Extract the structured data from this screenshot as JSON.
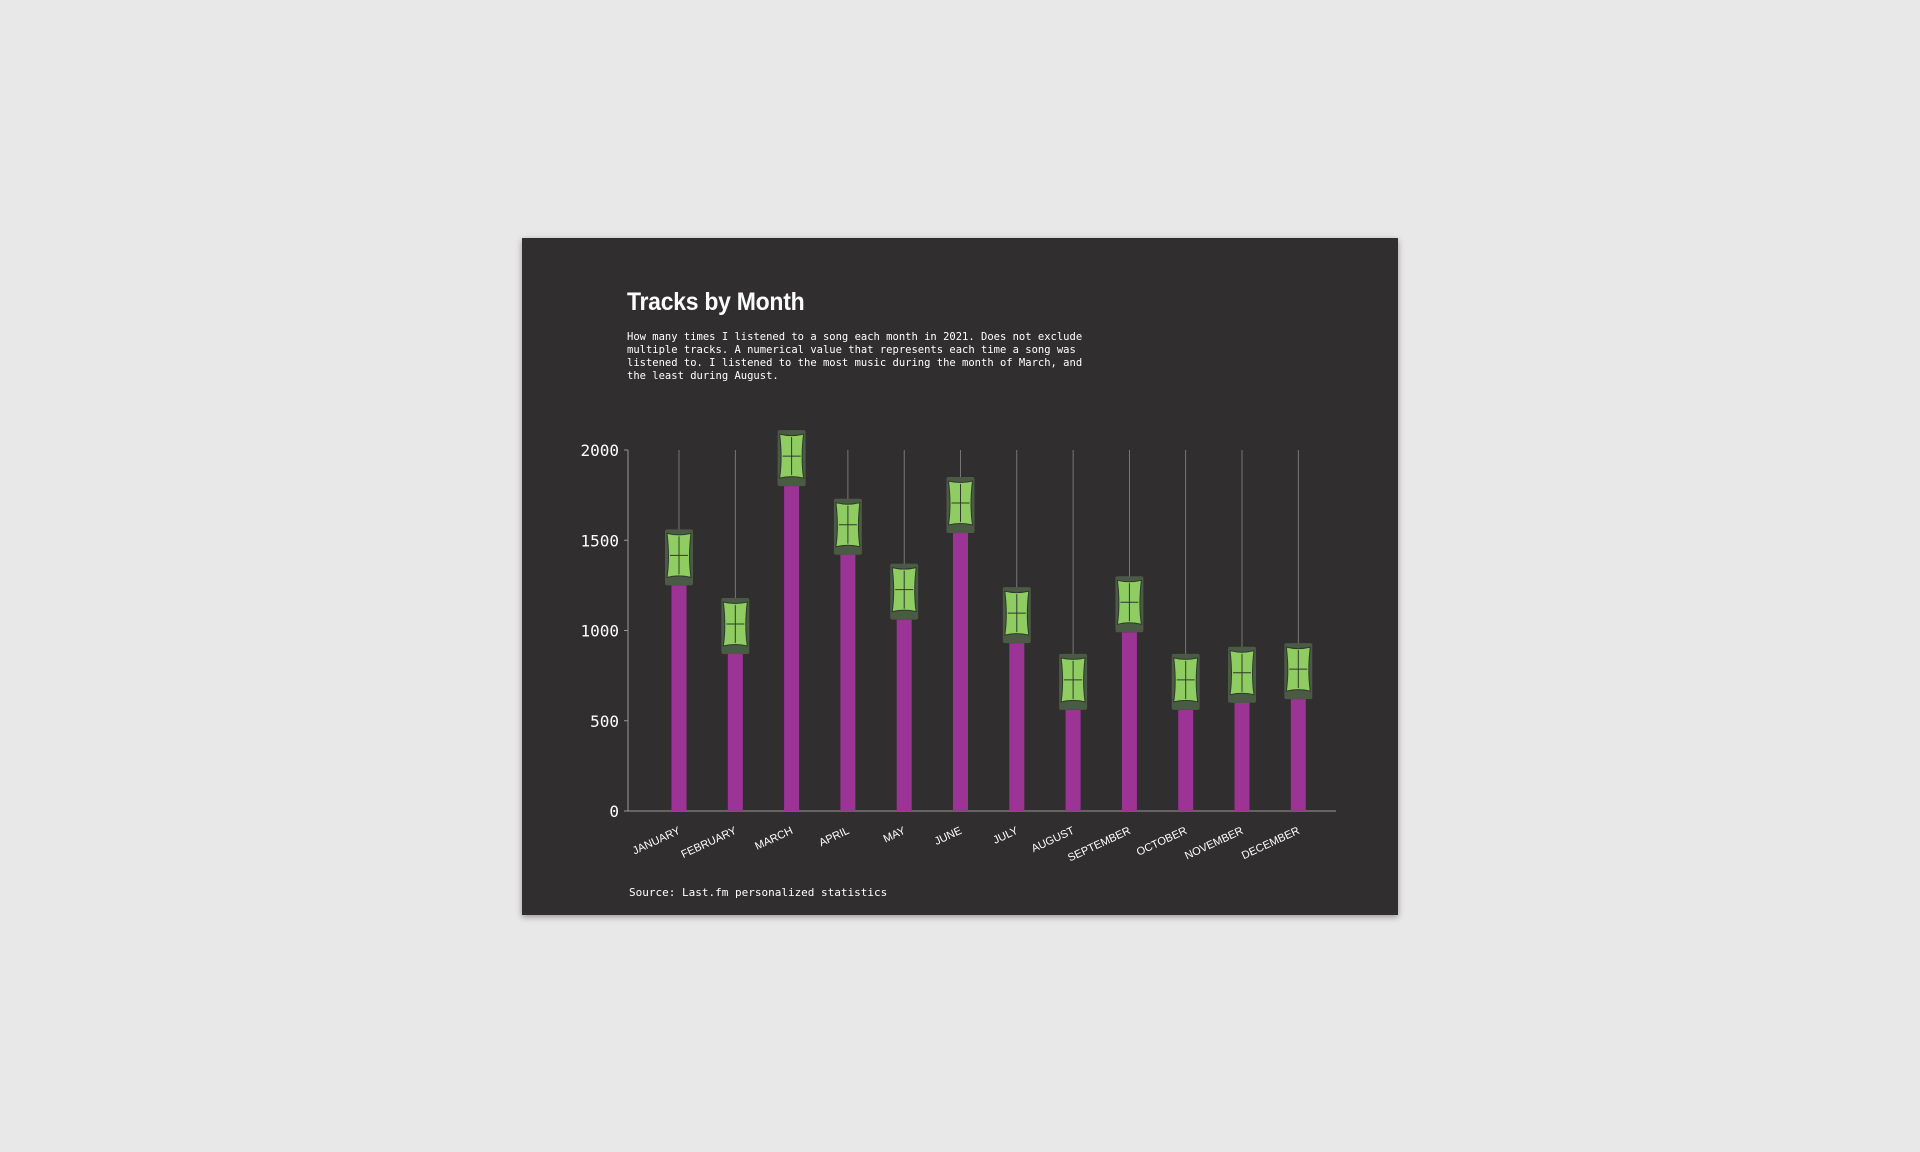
{
  "chart_data": {
    "type": "bar",
    "title": "Tracks by Month",
    "subtitle": "How many times I listened to a song each month in 2021. Does not exclude multiple tracks. A numerical value that represents each time a song was listened to. I listened to the most music during the month of March, and the least during August.",
    "source": "Source: Last.fm personalized statistics",
    "categories": [
      "JANUARY",
      "FEBRUARY",
      "MARCH",
      "APRIL",
      "MAY",
      "JUNE",
      "JULY",
      "AUGUST",
      "SEPTEMBER",
      "OCTOBER",
      "NOVEMBER",
      "DECEMBER"
    ],
    "values": [
      1250,
      870,
      1800,
      1420,
      1060,
      1540,
      930,
      560,
      990,
      560,
      600,
      620
    ],
    "yticks": [
      "0",
      "500",
      "1000",
      "1500",
      "2000"
    ],
    "ylim": [
      0,
      2000
    ],
    "xlabel": "",
    "ylabel": "",
    "grid": false,
    "colors": {
      "background": "#302e2f",
      "bar": "#9b3494",
      "icon_fill": "#8fcd63",
      "icon_dark": "#4a5a44",
      "axis": "#9a9a9a",
      "stem": "#8a8a8a",
      "text": "#ffffff"
    }
  }
}
